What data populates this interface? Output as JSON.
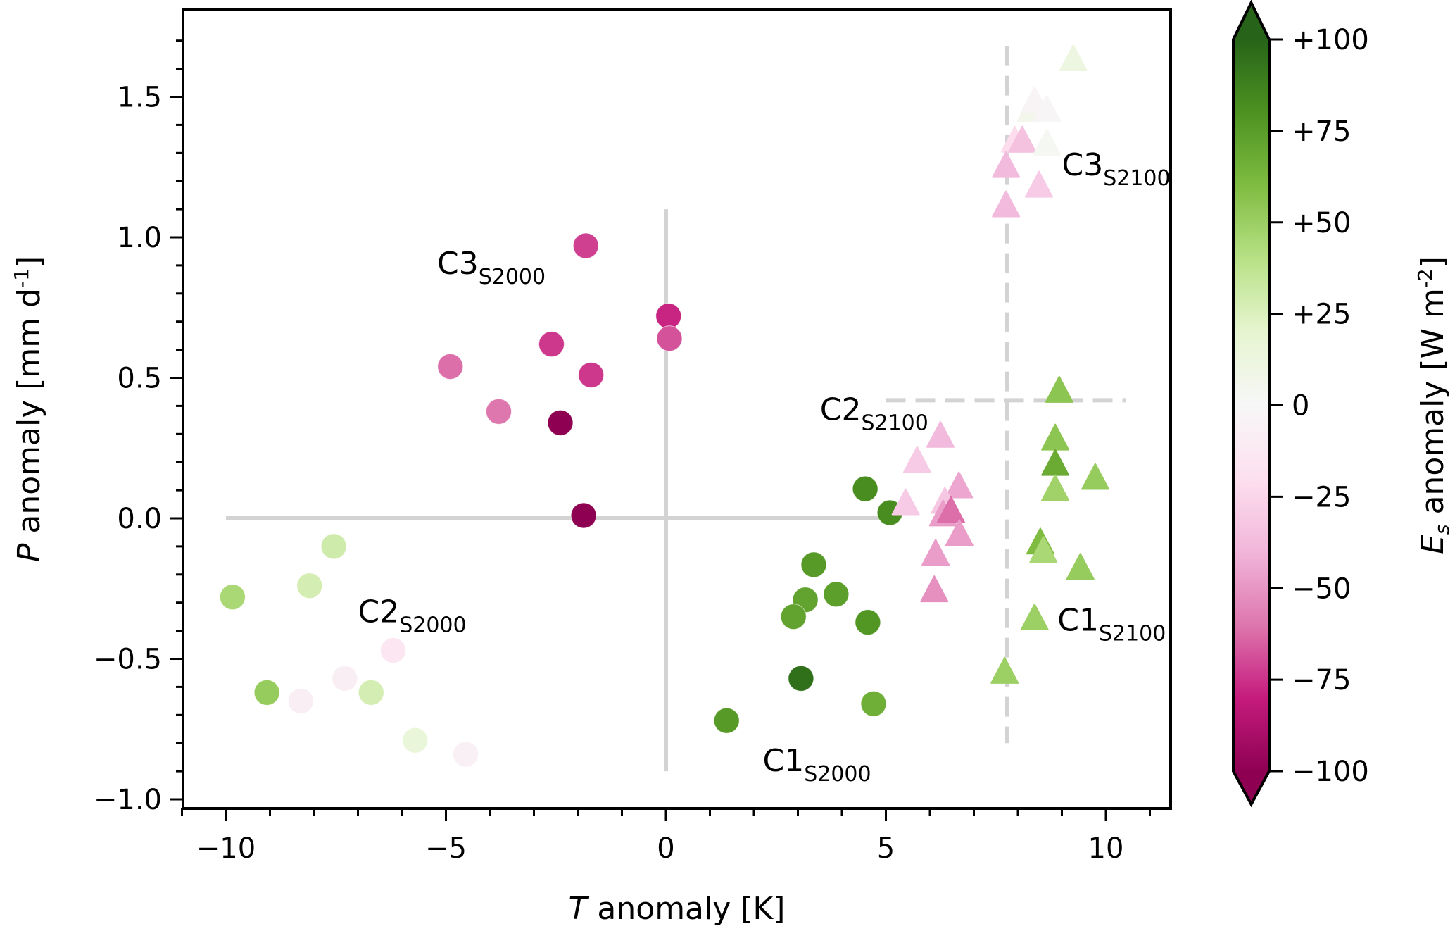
{
  "chart_data": {
    "type": "scatter",
    "title": "",
    "xlabel": {
      "italic": "T",
      "rest": " anomaly [K]"
    },
    "ylabel": {
      "italic": "P",
      "rest": " anomaly [mm d",
      "sup": "-1",
      "close": "]"
    },
    "xlim": [
      -11,
      11.5
    ],
    "ylim": [
      -1.05,
      1.78
    ],
    "xticks": [
      -10,
      -5,
      0,
      5,
      10
    ],
    "xtick_labels": [
      "−10",
      "−5",
      "0",
      "5",
      "10"
    ],
    "x_minor_step": 1,
    "yticks": [
      -1.0,
      -0.5,
      0.0,
      0.5,
      1.0,
      1.5
    ],
    "ytick_labels": [
      "−1.0",
      "−0.5",
      "0.0",
      "0.5",
      "1.0",
      "1.5"
    ],
    "y_minor_step": 0.1,
    "grid": false,
    "colorbar": {
      "label": {
        "italic": "E",
        "sub": "s",
        "rest": " anomaly [W m",
        "sup": "-2",
        "close": "]"
      },
      "range": [
        -100,
        100
      ],
      "ticks": [
        100,
        75,
        50,
        25,
        0,
        -25,
        -50,
        -75,
        -100
      ],
      "tick_labels": [
        "+100",
        "+75",
        "+50",
        "+25",
        "0",
        "−25",
        "−50",
        "−75",
        "−100"
      ],
      "extend": "both",
      "colormap": "PiYG",
      "colormap_stops": [
        "#8e0152",
        "#c51b7d",
        "#de77ae",
        "#f1b6da",
        "#fde0ef",
        "#f7f7f7",
        "#e6f5d0",
        "#b8e186",
        "#7fbc41",
        "#4d9221",
        "#276419"
      ]
    },
    "reference_lines": [
      {
        "name": "S2000-vertical",
        "style": "solid",
        "orientation": "vertical",
        "x": 0,
        "y_range": [
          -0.9,
          1.1
        ]
      },
      {
        "name": "S2000-horizontal",
        "style": "solid",
        "orientation": "horizontal",
        "y": 0,
        "x_range": [
          -10,
          5.15
        ]
      },
      {
        "name": "S2100-vertical",
        "style": "dashed",
        "orientation": "vertical",
        "x": 7.76,
        "y_range": [
          -0.8,
          1.68
        ]
      },
      {
        "name": "S2100-horizontal",
        "style": "dashed",
        "orientation": "horizontal",
        "y": 0.42,
        "x_range": [
          5.0,
          10.45
        ]
      }
    ],
    "reference_line_color": "#d3d3d3",
    "annotations": [
      {
        "main": "C3",
        "sub": "S2000",
        "x": -5.2,
        "y": 0.87
      },
      {
        "main": "C2",
        "sub": "S2000",
        "x": -7.0,
        "y": -0.37
      },
      {
        "main": "C1",
        "sub": "S2000",
        "x": 2.2,
        "y": -0.9
      },
      {
        "main": "C3",
        "sub": "S2100",
        "x": 9.0,
        "y": 1.22
      },
      {
        "main": "C2",
        "sub": "S2100",
        "x": 3.5,
        "y": 0.35
      },
      {
        "main": "C1",
        "sub": "S2100",
        "x": 8.9,
        "y": -0.4
      }
    ],
    "series": [
      {
        "name": "S2000",
        "marker": "circle",
        "points": [
          {
            "x": -1.82,
            "y": 0.97,
            "es": -72
          },
          {
            "x": 0.06,
            "y": 0.72,
            "es": -78
          },
          {
            "x": 0.08,
            "y": 0.64,
            "es": -68
          },
          {
            "x": -2.6,
            "y": 0.62,
            "es": -74
          },
          {
            "x": -4.9,
            "y": 0.54,
            "es": -62
          },
          {
            "x": -1.7,
            "y": 0.51,
            "es": -74
          },
          {
            "x": -3.8,
            "y": 0.38,
            "es": -60
          },
          {
            "x": -2.4,
            "y": 0.34,
            "es": -100
          },
          {
            "x": -1.87,
            "y": 0.01,
            "es": -100
          },
          {
            "x": -7.55,
            "y": -0.1,
            "es": 30
          },
          {
            "x": -8.1,
            "y": -0.24,
            "es": 28
          },
          {
            "x": -9.85,
            "y": -0.28,
            "es": 45
          },
          {
            "x": -6.2,
            "y": -0.47,
            "es": -15
          },
          {
            "x": -7.3,
            "y": -0.57,
            "es": -8
          },
          {
            "x": -9.07,
            "y": -0.62,
            "es": 52
          },
          {
            "x": -6.7,
            "y": -0.62,
            "es": 28
          },
          {
            "x": -8.3,
            "y": -0.65,
            "es": -8
          },
          {
            "x": -5.7,
            "y": -0.79,
            "es": 15
          },
          {
            "x": -4.55,
            "y": -0.84,
            "es": -6
          },
          {
            "x": 4.53,
            "y": 0.105,
            "es": 82
          },
          {
            "x": 5.09,
            "y": 0.02,
            "es": 82
          },
          {
            "x": 3.36,
            "y": -0.165,
            "es": 76
          },
          {
            "x": 3.87,
            "y": -0.27,
            "es": 74
          },
          {
            "x": 3.17,
            "y": -0.29,
            "es": 72
          },
          {
            "x": 2.9,
            "y": -0.35,
            "es": 72
          },
          {
            "x": 4.59,
            "y": -0.37,
            "es": 78
          },
          {
            "x": 3.07,
            "y": -0.57,
            "es": 95
          },
          {
            "x": 4.72,
            "y": -0.66,
            "es": 66
          },
          {
            "x": 1.38,
            "y": -0.72,
            "es": 76
          }
        ]
      },
      {
        "name": "S2100",
        "marker": "triangle",
        "points": [
          {
            "x": 9.26,
            "y": 1.63,
            "es": 12
          },
          {
            "x": 8.3,
            "y": 1.45,
            "es": 6
          },
          {
            "x": 8.38,
            "y": 1.48,
            "es": -3
          },
          {
            "x": 8.66,
            "y": 1.45,
            "es": -2
          },
          {
            "x": 7.93,
            "y": 1.34,
            "es": -22
          },
          {
            "x": 8.1,
            "y": 1.34,
            "es": -35
          },
          {
            "x": 8.66,
            "y": 1.33,
            "es": 2
          },
          {
            "x": 7.73,
            "y": 1.25,
            "es": -38
          },
          {
            "x": 8.48,
            "y": 1.18,
            "es": -30
          },
          {
            "x": 7.73,
            "y": 1.11,
            "es": -38
          },
          {
            "x": 8.94,
            "y": 0.45,
            "es": 55
          },
          {
            "x": 6.24,
            "y": 0.29,
            "es": -38
          },
          {
            "x": 8.85,
            "y": 0.28,
            "es": 55
          },
          {
            "x": 5.71,
            "y": 0.2,
            "es": -30
          },
          {
            "x": 8.85,
            "y": 0.19,
            "es": 68
          },
          {
            "x": 9.76,
            "y": 0.14,
            "es": 52
          },
          {
            "x": 6.66,
            "y": 0.11,
            "es": -45
          },
          {
            "x": 8.85,
            "y": 0.1,
            "es": 48
          },
          {
            "x": 6.34,
            "y": 0.055,
            "es": -32
          },
          {
            "x": 5.45,
            "y": 0.05,
            "es": -30
          },
          {
            "x": 6.3,
            "y": 0.01,
            "es": -48
          },
          {
            "x": 6.48,
            "y": 0.022,
            "es": -62
          },
          {
            "x": 6.67,
            "y": -0.06,
            "es": -48
          },
          {
            "x": 8.51,
            "y": -0.09,
            "es": 60
          },
          {
            "x": 8.58,
            "y": -0.12,
            "es": 45
          },
          {
            "x": 6.13,
            "y": -0.13,
            "es": -48
          },
          {
            "x": 9.42,
            "y": -0.18,
            "es": 52
          },
          {
            "x": 6.1,
            "y": -0.26,
            "es": -52
          },
          {
            "x": 8.38,
            "y": -0.36,
            "es": 50
          },
          {
            "x": 7.7,
            "y": -0.55,
            "es": 50
          }
        ]
      }
    ]
  }
}
